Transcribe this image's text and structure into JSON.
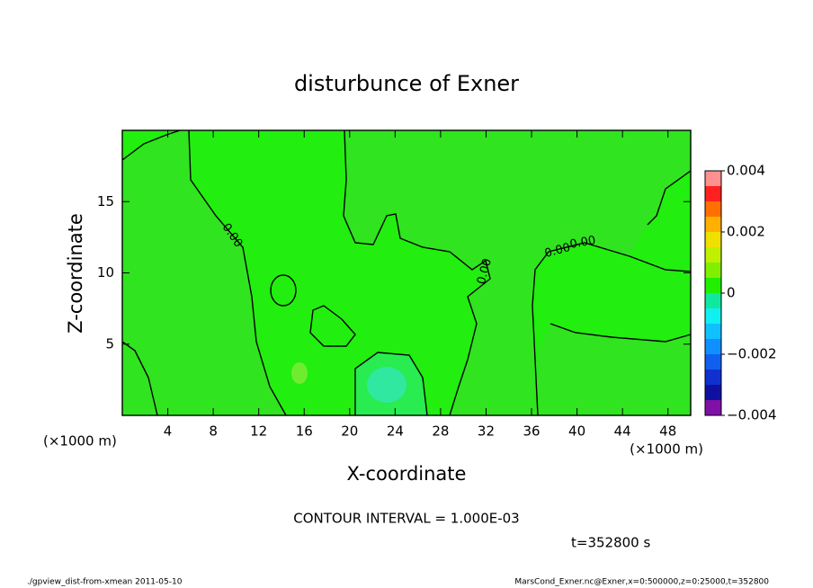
{
  "chart_data": {
    "type": "contour",
    "title": "disturbunce of Exner",
    "x_label": "X-coordinate",
    "y_label": "Z-coordinate",
    "x_unit_left": "(×1000 m)",
    "x_unit_right": "(×1000 m)",
    "xlim": [
      0,
      50
    ],
    "ylim": [
      0,
      20
    ],
    "xticks": [
      4,
      8,
      12,
      16,
      20,
      24,
      28,
      32,
      36,
      40,
      44,
      48
    ],
    "yticks": [
      5,
      10,
      15
    ],
    "contour_labels": [
      "0.00",
      "0.00",
      "0.00",
      "0.00"
    ],
    "colorbar": {
      "levels": [
        -0.004,
        -0.0035,
        -0.003,
        -0.0025,
        -0.002,
        -0.0015,
        -0.001,
        -0.0005,
        0,
        0.0005,
        0.001,
        0.0015,
        0.002,
        0.0025,
        0.003,
        0.0035,
        0.004
      ],
      "colors": [
        "#8010a8",
        "#1010a0",
        "#1030d0",
        "#1060f0",
        "#1090ff",
        "#10c0ff",
        "#10f0f0",
        "#10e8a0",
        "#20f000",
        "#80f000",
        "#c0f000",
        "#f0e000",
        "#ffb000",
        "#ff7000",
        "#ff2020",
        "#ff9090"
      ],
      "ticks": [
        {
          "value": 0.004,
          "label": "0.004"
        },
        {
          "value": 0.002,
          "label": "0.002"
        },
        0,
        {
          "value": -0.002,
          "label": "−0.002"
        },
        {
          "value": -0.004,
          "label": "−0.004"
        }
      ]
    },
    "interval_note": "CONTOUR INTERVAL = 1.000E-03",
    "time_note": "t=352800 s",
    "footer_left": "./gpview_dist-from-xmean  2011-05-10",
    "footer_right": "MarsCond_Exner.nc@Exner,x=0:500000,z=0:25000,t=352800"
  }
}
